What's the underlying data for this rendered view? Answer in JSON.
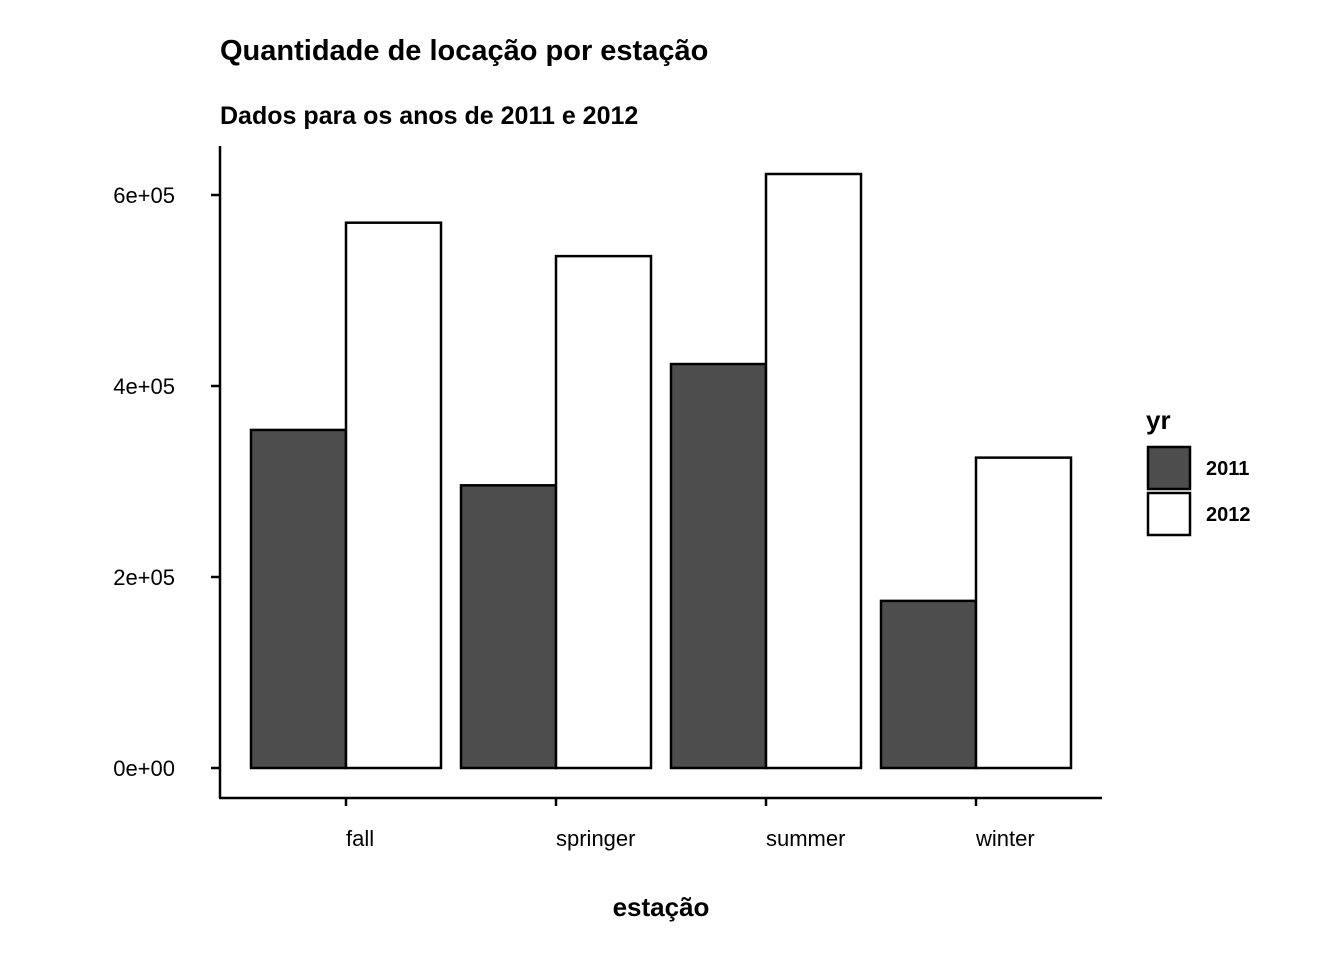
{
  "chart_data": {
    "type": "bar",
    "title": "Quantidade de locação por estação",
    "subtitle": "Dados para os anos de 2011 e 2012",
    "xlabel": "estação",
    "ylabel": "",
    "categories": [
      "fall",
      "springer",
      "summer",
      "winter"
    ],
    "series": [
      {
        "name": "2011",
        "color": "#4d4d4d",
        "values": [
          354000,
          296000,
          423000,
          175000
        ]
      },
      {
        "name": "2012",
        "color": "#ffffff",
        "values": [
          571000,
          536000,
          622000,
          325000
        ]
      }
    ],
    "ylim": [
      0,
      650000
    ],
    "yticks": [
      0,
      200000,
      400000,
      600000
    ],
    "ytick_labels": [
      "0e+00",
      "2e+05",
      "4e+05",
      "6e+05"
    ],
    "grid": false,
    "legend": {
      "title": "yr",
      "position": "right"
    }
  }
}
